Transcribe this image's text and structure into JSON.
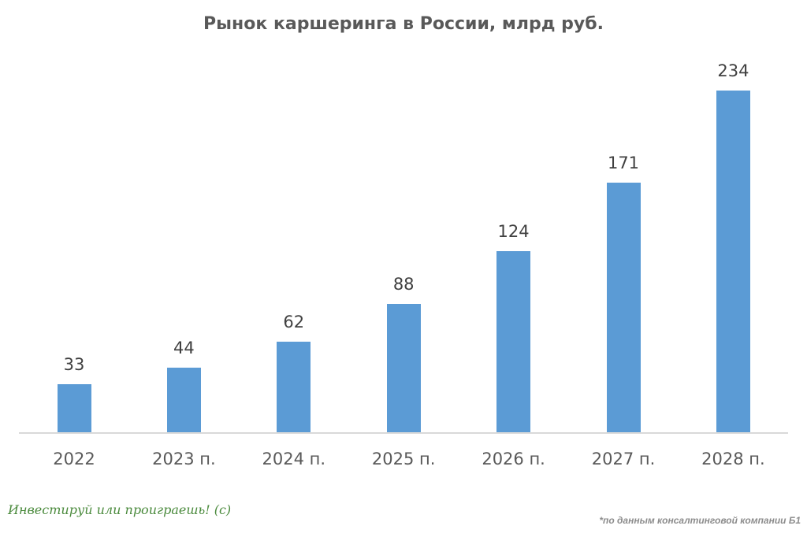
{
  "chart_data": {
    "type": "bar",
    "title": "Рынок каршеринга в России, млрд руб.",
    "categories": [
      "2022",
      "2023 п.",
      "2024 п.",
      "2025 п.",
      "2026 п.",
      "2027 п.",
      "2028 п."
    ],
    "values": [
      33,
      44,
      62,
      88,
      124,
      171,
      234
    ],
    "xlabel": "",
    "ylabel": "",
    "ylim": [
      0,
      234
    ],
    "grid": false,
    "legend": null,
    "data_labels": true,
    "bar_color": "#5b9bd5"
  },
  "footer": {
    "slogan": "Инвестируй или проиграешь! (с)",
    "source": "*по данным консалтинговой компании Б1"
  }
}
